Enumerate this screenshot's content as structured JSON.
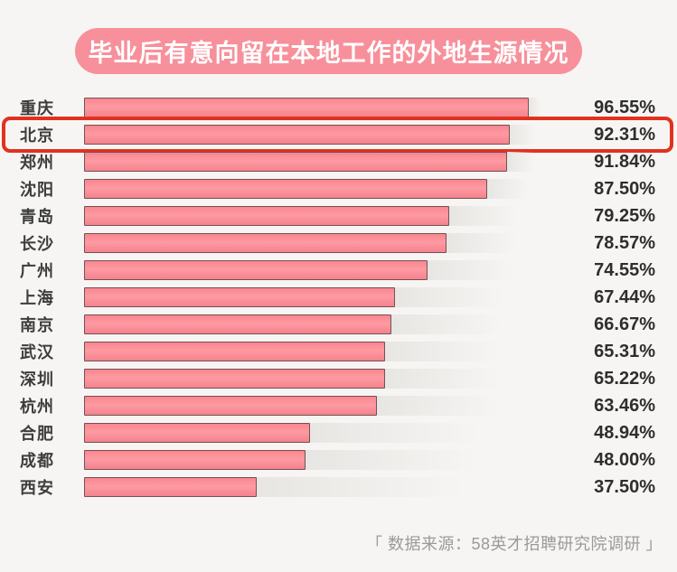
{
  "title": "毕业后有意向留在本地工作的外地生源情况",
  "source": "「 数据来源：58英才招聘研究院调研 」",
  "colors": {
    "background": "#f6f5f3",
    "badge_pink": "#f7909b",
    "bar_fill": "#fa8e97",
    "bar_border": "#5d4648",
    "highlight_red": "#e0321f",
    "label_text": "#3d3d3d",
    "value_text": "#2e2e2e",
    "source_text": "#9a9a9a"
  },
  "chart_data": {
    "type": "bar",
    "orientation": "horizontal",
    "title": "毕业后有意向留在本地工作的外地生源情况",
    "categories": [
      "重庆",
      "北京",
      "郑州",
      "沈阳",
      "青岛",
      "长沙",
      "广州",
      "上海",
      "南京",
      "武汉",
      "深圳",
      "杭州",
      "合肥",
      "成都",
      "西安"
    ],
    "values": [
      96.55,
      92.31,
      91.84,
      87.5,
      79.25,
      78.57,
      74.55,
      67.44,
      66.67,
      65.31,
      65.22,
      63.46,
      48.94,
      48.0,
      37.5
    ],
    "value_labels": [
      "96.55%",
      "92.31%",
      "91.84%",
      "87.50%",
      "79.25%",
      "78.57%",
      "74.55%",
      "67.44%",
      "66.67%",
      "65.31%",
      "65.22%",
      "63.46%",
      "48.94%",
      "48.00%",
      "37.50%"
    ],
    "highlighted_index": 1,
    "highlighted_category": "北京",
    "xlim": [
      0,
      100
    ],
    "grid": false,
    "legend": false,
    "source": "「 数据来源：58英才招聘研究院调研 」"
  }
}
